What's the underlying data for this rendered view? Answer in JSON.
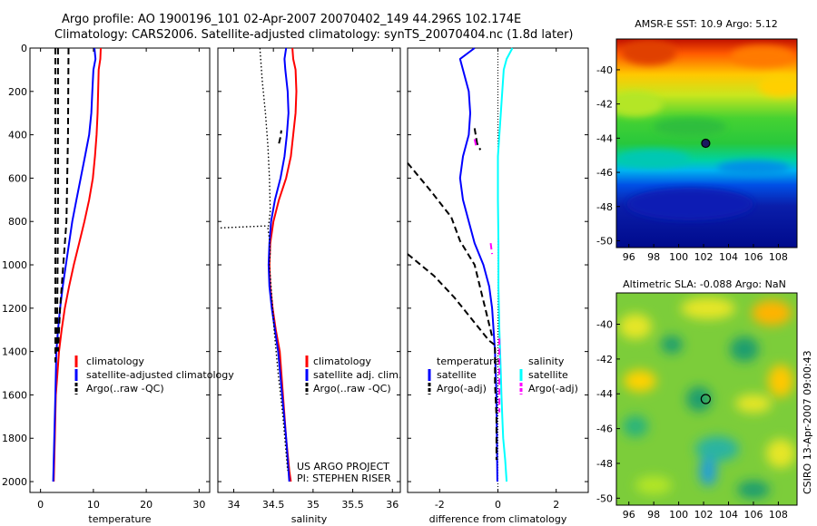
{
  "figure": {
    "title_line1": "Argo profile: AO 1900196_101 02-Apr-2007 20070402_149 44.296S 102.174E",
    "title_line2": "Climatology: CARS2006. Satellite-adjusted climatology: synTS_20070404.nc (1.8d later)",
    "credit": "CSIRO 13-Apr-2007 09:00:43",
    "colors": {
      "climatology": "#ff0000",
      "satellite": "#0000ff",
      "satellite_salinity": "#00ffff",
      "argo": "#000000",
      "argo_adj_salinity": "#ff00ff"
    }
  },
  "chart_data": [
    {
      "type": "line",
      "panel": "temperature",
      "xlabel": "temperature",
      "xlim": [
        -2,
        32
      ],
      "ylim": [
        0,
        2050
      ],
      "y_reversed": true,
      "xticks": [
        0,
        10,
        20,
        30
      ],
      "yticks": [
        0,
        200,
        400,
        600,
        800,
        1000,
        1200,
        1400,
        1600,
        1800,
        2000
      ],
      "legend": {
        "position": "lower-right",
        "entries": [
          "climatology",
          "satellite-adjusted climatology",
          "Argo(..raw -QC)"
        ]
      },
      "series": [
        {
          "name": "climatology",
          "color": "#ff0000",
          "style": "solid",
          "x": [
            11.4,
            11.3,
            11.0,
            10.9,
            10.8,
            10.6,
            10.3,
            9.9,
            9.2,
            8.3,
            7.3,
            6.3,
            5.4,
            4.6,
            4.0,
            3.5,
            3.2,
            2.9,
            2.7,
            2.5
          ],
          "y": [
            0,
            50,
            100,
            200,
            300,
            400,
            500,
            600,
            700,
            800,
            900,
            1000,
            1100,
            1200,
            1300,
            1400,
            1500,
            1600,
            1800,
            2000
          ]
        },
        {
          "name": "satellite-adjusted climatology",
          "color": "#0000ff",
          "style": "solid",
          "x": [
            10.2,
            10.4,
            10.0,
            9.8,
            9.6,
            9.2,
            8.4,
            7.6,
            6.8,
            6.0,
            5.4,
            4.8,
            4.2,
            3.7,
            3.3,
            3.0,
            2.8,
            2.6,
            2.4
          ],
          "y": [
            0,
            50,
            100,
            200,
            300,
            400,
            500,
            600,
            700,
            800,
            900,
            1000,
            1100,
            1200,
            1300,
            1400,
            1600,
            1800,
            2000
          ]
        },
        {
          "name": "Argo(..raw -QC)",
          "color": "#000000",
          "style": "dashed",
          "x": [
            2.8,
            2.8,
            2.8,
            2.8,
            2.8,
            2.8
          ],
          "y": [
            0,
            400,
            800,
            1100,
            1300,
            1450
          ]
        },
        {
          "name": "Argo(..raw -QC)",
          "color": "#000000",
          "style": "dashed",
          "x": [
            3.3,
            3.3,
            3.3,
            3.2,
            3.1
          ],
          "y": [
            0,
            300,
            700,
            1100,
            1400
          ]
        },
        {
          "name": "Argo(..raw -QC)",
          "color": "#000000",
          "style": "dashed",
          "x": [
            5.3,
            5.2,
            4.9,
            4.3,
            3.7,
            3.3
          ],
          "y": [
            0,
            400,
            800,
            1000,
            1200,
            1400
          ]
        }
      ]
    },
    {
      "type": "line",
      "panel": "salinity",
      "xlabel": "salinity",
      "xlim": [
        33.8,
        36.1
      ],
      "ylim": [
        0,
        2050
      ],
      "y_reversed": true,
      "xticks": [
        34,
        34.5,
        35,
        35.5,
        36
      ],
      "xticklabels": [
        "34",
        "34.5",
        "35",
        "35.5",
        "36"
      ],
      "legend": {
        "position": "lower-right",
        "entries": [
          "climatology",
          "satellite adj. clim.",
          "Argo(..raw -QC)"
        ]
      },
      "annotation": [
        "US ARGO PROJECT",
        "PI: STEPHEN RISER"
      ],
      "series": [
        {
          "name": "climatology",
          "color": "#ff0000",
          "style": "solid",
          "x": [
            34.74,
            34.75,
            34.78,
            34.79,
            34.78,
            34.75,
            34.72,
            34.66,
            34.57,
            34.5,
            34.46,
            34.45,
            34.46,
            34.49,
            34.53,
            34.58,
            34.62,
            34.66,
            34.7,
            34.72
          ],
          "y": [
            0,
            50,
            100,
            200,
            300,
            400,
            500,
            600,
            700,
            800,
            900,
            1000,
            1100,
            1200,
            1300,
            1400,
            1600,
            1800,
            1950,
            2000
          ]
        },
        {
          "name": "satellite adj. clim.",
          "color": "#0000ff",
          "style": "solid",
          "x": [
            34.66,
            34.64,
            34.65,
            34.68,
            34.69,
            34.67,
            34.64,
            34.59,
            34.52,
            34.47,
            34.45,
            34.44,
            34.45,
            34.48,
            34.52,
            34.56,
            34.61,
            34.66,
            34.69,
            34.7
          ],
          "y": [
            0,
            50,
            100,
            200,
            300,
            400,
            500,
            600,
            700,
            800,
            900,
            1000,
            1100,
            1200,
            1300,
            1400,
            1600,
            1800,
            1950,
            2000
          ]
        },
        {
          "name": "Argo(..raw -QC)",
          "color": "#000000",
          "style": "dotted",
          "x": [
            34.33,
            34.36,
            34.4,
            34.43,
            34.45,
            34.46,
            34.44,
            33.8
          ],
          "y": [
            0,
            150,
            300,
            450,
            600,
            750,
            820,
            830
          ]
        },
        {
          "name": "Argo(..raw -QC)",
          "color": "#000000",
          "style": "dotted",
          "x": [
            34.43,
            34.45,
            34.46,
            34.45,
            34.47,
            34.51,
            34.56,
            34.62,
            34.68
          ],
          "y": [
            830,
            880,
            940,
            1000,
            1100,
            1300,
            1500,
            1700,
            1950
          ]
        },
        {
          "name": "Argo(..raw -QC)",
          "color": "#000000",
          "style": "dashed",
          "x": [
            34.57,
            34.59,
            34.6
          ],
          "y": [
            440,
            410,
            380
          ]
        }
      ]
    },
    {
      "type": "line",
      "panel": "difference",
      "xlabel": "difference from climatology",
      "xlim": [
        -3.1,
        3.1
      ],
      "ylim": [
        0,
        2050
      ],
      "y_reversed": true,
      "xticks": [
        -2,
        0,
        2
      ],
      "legend": {
        "position": "lower-right",
        "entries": [
          "temperature",
          "satellite",
          "Argo(-adj)",
          "salinity",
          "satellite",
          "Argo(-adj)"
        ]
      },
      "series": [
        {
          "name": "temperature satellite",
          "color": "#0000ff",
          "style": "solid",
          "x": [
            -0.8,
            -1.3,
            -1.2,
            -1.0,
            -0.95,
            -1.0,
            -1.2,
            -1.3,
            -1.2,
            -1.0,
            -0.8,
            -0.5,
            -0.3,
            -0.2,
            -0.1,
            -0.05,
            -0.02
          ],
          "y": [
            0,
            50,
            100,
            200,
            300,
            400,
            500,
            600,
            700,
            800,
            900,
            1000,
            1100,
            1200,
            1400,
            1600,
            2000
          ]
        },
        {
          "name": "salinity satellite",
          "color": "#00ffff",
          "style": "solid",
          "x": [
            0.5,
            0.3,
            0.2,
            0.15,
            0.1,
            0.05,
            0.0,
            0.0,
            0.02,
            0.02,
            0.05,
            0.1,
            0.12,
            0.15,
            0.18,
            0.25,
            0.3
          ],
          "y": [
            0,
            50,
            100,
            200,
            300,
            400,
            500,
            700,
            900,
            1100,
            1300,
            1500,
            1600,
            1700,
            1800,
            1900,
            2000
          ]
        },
        {
          "name": "temperature Argo(-adj)",
          "color": "#000000",
          "style": "dashed",
          "x": [
            -3.1,
            -2.3,
            -1.6,
            -1.3,
            -0.8,
            -0.2
          ],
          "y": [
            530,
            660,
            780,
            890,
            1000,
            1330
          ]
        },
        {
          "name": "temperature Argo(-adj)",
          "color": "#000000",
          "style": "dashed",
          "x": [
            -3.1,
            -2.2,
            -1.5,
            -0.9,
            -0.3,
            -0.1
          ],
          "y": [
            950,
            1050,
            1150,
            1250,
            1350,
            1370
          ]
        },
        {
          "name": "temperature Argo(-adj)",
          "color": "#000000",
          "style": "dashed",
          "x": [
            -0.8,
            -0.7,
            -0.75,
            -0.6
          ],
          "y": [
            370,
            450,
            430,
            470
          ]
        },
        {
          "name": "temperature Argo(-adj)",
          "color": "#000000",
          "style": "dashed",
          "x": [
            -0.1,
            -0.1,
            -0.05,
            -0.05
          ],
          "y": [
            1380,
            1550,
            1700,
            1900
          ]
        },
        {
          "name": "salinity Argo(-adj)",
          "color": "#ff00ff",
          "style": "dashed",
          "x": [
            -0.8,
            -0.75
          ],
          "y": [
            420,
            450
          ]
        },
        {
          "name": "salinity Argo(-adj)",
          "color": "#ff00ff",
          "style": "dashed",
          "x": [
            -0.25,
            -0.2
          ],
          "y": [
            900,
            950
          ]
        },
        {
          "name": "salinity Argo(-adj)",
          "color": "#ff00ff",
          "style": "dashed",
          "x": [
            0.05,
            0.05
          ],
          "y": [
            1340,
            1680
          ]
        }
      ]
    },
    {
      "type": "heatmap",
      "panel": "sst_map",
      "title": "AMSR-E SST: 10.9  Argo: 5.12",
      "xticks": [
        96,
        98,
        100,
        102,
        104,
        106,
        108
      ],
      "yticks": [
        -40,
        -42,
        -44,
        -46,
        -48,
        -50
      ],
      "xlim": [
        95,
        109.5
      ],
      "ylim": [
        -50.4,
        -38.2
      ],
      "marker": {
        "lon": 102.17,
        "lat": -44.3,
        "style": "filled"
      }
    },
    {
      "type": "heatmap",
      "panel": "sla_map",
      "title": "Altimetric SLA: -0.088  Argo: NaN",
      "xticks": [
        96,
        98,
        100,
        102,
        104,
        106,
        108
      ],
      "yticks": [
        -40,
        -42,
        -44,
        -46,
        -48,
        -50
      ],
      "xlim": [
        95,
        109.5
      ],
      "ylim": [
        -50.4,
        -38.2
      ],
      "marker": {
        "lon": 102.17,
        "lat": -44.3,
        "style": "open"
      }
    }
  ]
}
